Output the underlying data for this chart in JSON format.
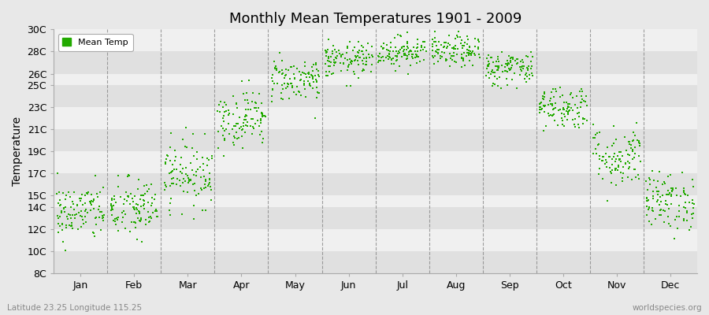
{
  "title": "Monthly Mean Temperatures 1901 - 2009",
  "ylabel": "Temperature",
  "xlabel_months": [
    "Jan",
    "Feb",
    "Mar",
    "Apr",
    "May",
    "Jun",
    "Jul",
    "Aug",
    "Sep",
    "Oct",
    "Nov",
    "Dec"
  ],
  "subtitle_left": "Latitude 23.25 Longitude 115.25",
  "subtitle_right": "worldspecies.org",
  "legend_label": "Mean Temp",
  "marker_color": "#22aa00",
  "background_color": "#e8e8e8",
  "band_light": "#f0f0f0",
  "band_dark": "#e0e0e0",
  "ylim": [
    8,
    30
  ],
  "yticks": [
    8,
    10,
    12,
    14,
    15,
    17,
    19,
    21,
    23,
    25,
    26,
    28,
    30
  ],
  "ytick_labels": [
    "8C",
    "10C",
    "12C",
    "14C",
    "15C",
    "17C",
    "19C",
    "21C",
    "23C",
    "25C",
    "26C",
    "28C",
    "30C"
  ],
  "mean_temps": [
    13.5,
    13.8,
    17.0,
    22.0,
    25.5,
    27.2,
    28.0,
    28.0,
    26.5,
    23.0,
    18.5,
    14.5
  ],
  "n_years": 109,
  "std_temps": [
    1.3,
    1.4,
    1.5,
    1.3,
    1.0,
    0.8,
    0.7,
    0.7,
    0.8,
    1.0,
    1.4,
    1.3
  ]
}
